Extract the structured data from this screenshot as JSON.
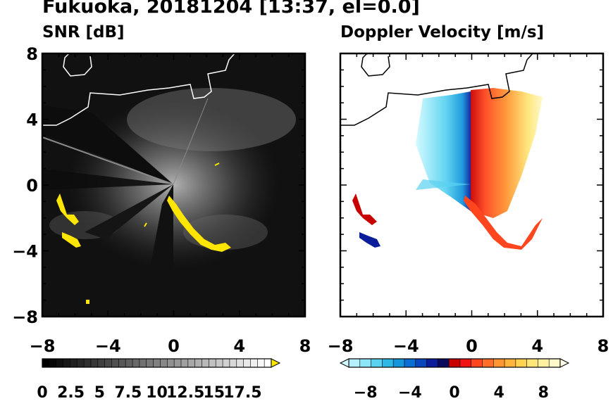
{
  "title": "Fukuoka, 20181204 [13:37, el=0.0]",
  "chart_data": [
    {
      "type": "heatmap",
      "title": "SNR [dB]",
      "x_ticks": [
        "−8",
        "−4",
        "0",
        "4",
        "8"
      ],
      "y_ticks": [
        "8",
        "4",
        "0",
        "−4",
        "−8"
      ],
      "xlim": [
        -8,
        8
      ],
      "ylim": [
        -8,
        8
      ],
      "background_color": "#111111",
      "colorbar": {
        "colors": [
          "#000000",
          "#080808",
          "#101010",
          "#181818",
          "#202020",
          "#282828",
          "#303030",
          "#383838",
          "#404040",
          "#484848",
          "#505050",
          "#585858",
          "#606060",
          "#686868",
          "#707070",
          "#787878",
          "#808080",
          "#888888",
          "#909090",
          "#989898",
          "#a0a0a0",
          "#a8a8a8",
          "#b0b0b0",
          "#b8b8b8",
          "#c0c0c0",
          "#c8c8c8",
          "#d0d0d0",
          "#d8d8d8",
          "#e0e0e0",
          "#e8e8e8",
          "#f0f0f0",
          "#f8f8f8",
          "#ffffff"
        ],
        "overflow_color": "#ffe600",
        "ticks": [
          "0",
          "2.5",
          "5",
          "7.5",
          "10",
          "12.5",
          "15",
          "17.5"
        ],
        "tick_values": [
          0,
          2.5,
          5,
          7.5,
          10,
          12.5,
          15,
          17.5
        ],
        "range": [
          0,
          20
        ]
      }
    },
    {
      "type": "heatmap",
      "title": "Doppler Velocity [m/s]",
      "x_ticks": [
        "−8",
        "−4",
        "0",
        "4",
        "8"
      ],
      "y_ticks": [
        "8",
        "4",
        "0",
        "−4",
        "−8"
      ],
      "xlim": [
        -8,
        8
      ],
      "ylim": [
        -8,
        8
      ],
      "background_color": "#ffffff",
      "colorbar": {
        "colors": [
          "#b4f0ff",
          "#8ce6f8",
          "#5ad2f0",
          "#2eb8e6",
          "#1496dc",
          "#0a6ed2",
          "#0a46be",
          "#0a1e9b",
          "#0a0a5a",
          "#c80000",
          "#f01414",
          "#ff461e",
          "#ff6e28",
          "#ff9632",
          "#ffb43c",
          "#ffd250",
          "#ffe678",
          "#fff0a0",
          "#fff8c8"
        ],
        "underflow_color": "#d2faff",
        "overflow_color": "#fffce6",
        "ticks": [
          "−8",
          "−4",
          "0",
          "4",
          "8"
        ],
        "tick_values": [
          -8,
          -4,
          0,
          4,
          8
        ],
        "range": [
          -9.5,
          9.5
        ]
      }
    }
  ]
}
